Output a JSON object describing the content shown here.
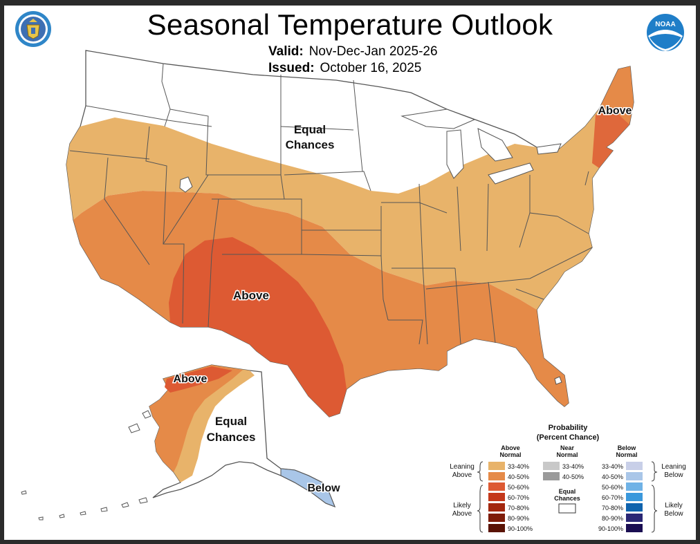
{
  "header": {
    "title": "Seasonal Temperature Outlook",
    "valid_label": "Valid:",
    "valid_value": "Nov-Dec-Jan 2025-26",
    "issued_label": "Issued:",
    "issued_value": "October 16, 2025",
    "left_logo": "doc-seal-icon",
    "right_logo": "noaa-logo-icon",
    "noaa_text": "NOAA"
  },
  "map_labels": {
    "conus_equal": [
      "Equal",
      "Chances"
    ],
    "conus_above_ne": "Above",
    "conus_above_sw": "Above",
    "ak_above": "Above",
    "ak_equal": [
      "Equal",
      "Chances"
    ],
    "ak_below": "Below"
  },
  "colors": {
    "above_33_40": "#e8b36a",
    "above_40_50": "#e58a48",
    "above_50_60": "#dd5a33",
    "above_60_70": "#c4381b",
    "above_70_80": "#a3270e",
    "above_80_90": "#7e1c09",
    "above_90_100": "#5a1305",
    "near_33_40": "#c8c8c8",
    "near_40_50": "#9a9a9a",
    "below_33_40": "#c8cfe8",
    "below_40_50": "#a9c6e8",
    "below_50_60": "#6fb2e6",
    "below_60_70": "#3a98dc",
    "below_70_80": "#0f63ad",
    "below_80_90": "#2a2775",
    "below_90_100": "#1a0e52",
    "equal": "#ffffff",
    "border": "#555555"
  },
  "legend": {
    "title_1": "Probability",
    "title_2": "(Percent Chance)",
    "above_header": [
      "Above",
      "Normal"
    ],
    "near_header": [
      "Near",
      "Normal"
    ],
    "below_header": [
      "Below",
      "Normal"
    ],
    "leaning_above": [
      "Leaning",
      "Above"
    ],
    "likely_above": [
      "Likely",
      "Above"
    ],
    "leaning_below": [
      "Leaning",
      "Below"
    ],
    "likely_below": [
      "Likely",
      "Below"
    ],
    "equal_chances": [
      "Equal",
      "Chances"
    ],
    "above_items": [
      {
        "label": "33-40%",
        "color": "#e8b36a"
      },
      {
        "label": "40-50%",
        "color": "#e58a48"
      },
      {
        "label": "50-60%",
        "color": "#dd5a33"
      },
      {
        "label": "60-70%",
        "color": "#c4381b"
      },
      {
        "label": "70-80%",
        "color": "#a3270e"
      },
      {
        "label": "80-90%",
        "color": "#7e1c09"
      },
      {
        "label": "90-100%",
        "color": "#5a1305"
      }
    ],
    "near_items": [
      {
        "label": "33-40%",
        "color": "#c8c8c8"
      },
      {
        "label": "40-50%",
        "color": "#9a9a9a"
      }
    ],
    "below_items": [
      {
        "label": "33-40%",
        "color": "#c8cfe8"
      },
      {
        "label": "40-50%",
        "color": "#a9c6e8"
      },
      {
        "label": "50-60%",
        "color": "#6fb2e6"
      },
      {
        "label": "60-70%",
        "color": "#3a98dc"
      },
      {
        "label": "70-80%",
        "color": "#0f63ad"
      },
      {
        "label": "80-90%",
        "color": "#2a2775"
      },
      {
        "label": "90-100%",
        "color": "#1a0e52"
      }
    ]
  }
}
